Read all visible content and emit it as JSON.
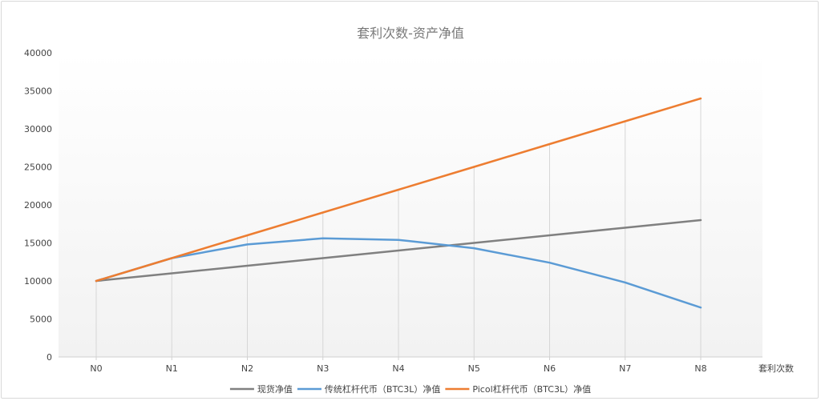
{
  "chart_data": {
    "type": "line",
    "title": "套利次数-资产净值",
    "xlabel": "套利次数",
    "ylabel": "",
    "categories": [
      "N0",
      "N1",
      "N2",
      "N3",
      "N4",
      "N5",
      "N6",
      "N7",
      "N8"
    ],
    "ylim": [
      0,
      40000
    ],
    "yticks": [
      0,
      5000,
      10000,
      15000,
      20000,
      25000,
      30000,
      35000,
      40000
    ],
    "grid": "vertical drop lines at each category",
    "legend_position": "bottom",
    "series": [
      {
        "name": "现货净值",
        "color": "#808080",
        "values": [
          10000,
          11000,
          12000,
          13000,
          14000,
          15000,
          16000,
          17000,
          18000
        ]
      },
      {
        "name": "传统杠杆代币（BTC3L）净值",
        "color": "#5b9bd5",
        "values": [
          10000,
          13000,
          14800,
          15600,
          15400,
          14300,
          12400,
          9800,
          6500
        ]
      },
      {
        "name": "Picol杠杆代币（BTC3L）净值",
        "color": "#ed7d31",
        "values": [
          10000,
          13000,
          16000,
          19000,
          22000,
          25000,
          28000,
          31000,
          34000
        ]
      }
    ]
  }
}
